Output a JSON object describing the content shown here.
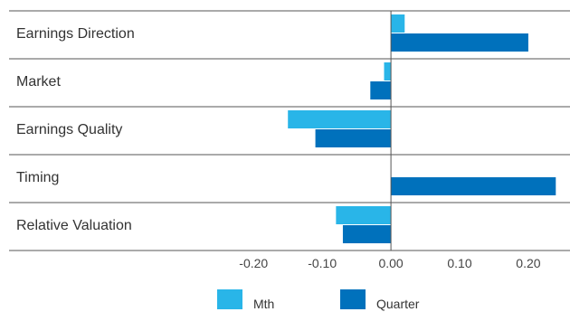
{
  "chart_data": {
    "type": "bar",
    "orientation": "horizontal",
    "categories": [
      "Earnings Direction",
      "Market",
      "Earnings Quality",
      "Timing",
      "Relative Valuation"
    ],
    "series": [
      {
        "name": "Mth",
        "values": [
          0.02,
          -0.01,
          -0.15,
          0.0,
          -0.08
        ],
        "color": "#29b5e8"
      },
      {
        "name": "Quarter",
        "values": [
          0.2,
          -0.03,
          -0.11,
          0.24,
          -0.07
        ],
        "color": "#0071bc"
      }
    ],
    "xlim": [
      -0.255,
      0.235
    ],
    "xticks": [
      -0.2,
      -0.1,
      0.0,
      0.1,
      0.2
    ],
    "xtick_labels": [
      "-0.20",
      "-0.10",
      "0.00",
      "0.10",
      "0.20"
    ],
    "legend": {
      "position": "bottom"
    },
    "grid": false
  }
}
